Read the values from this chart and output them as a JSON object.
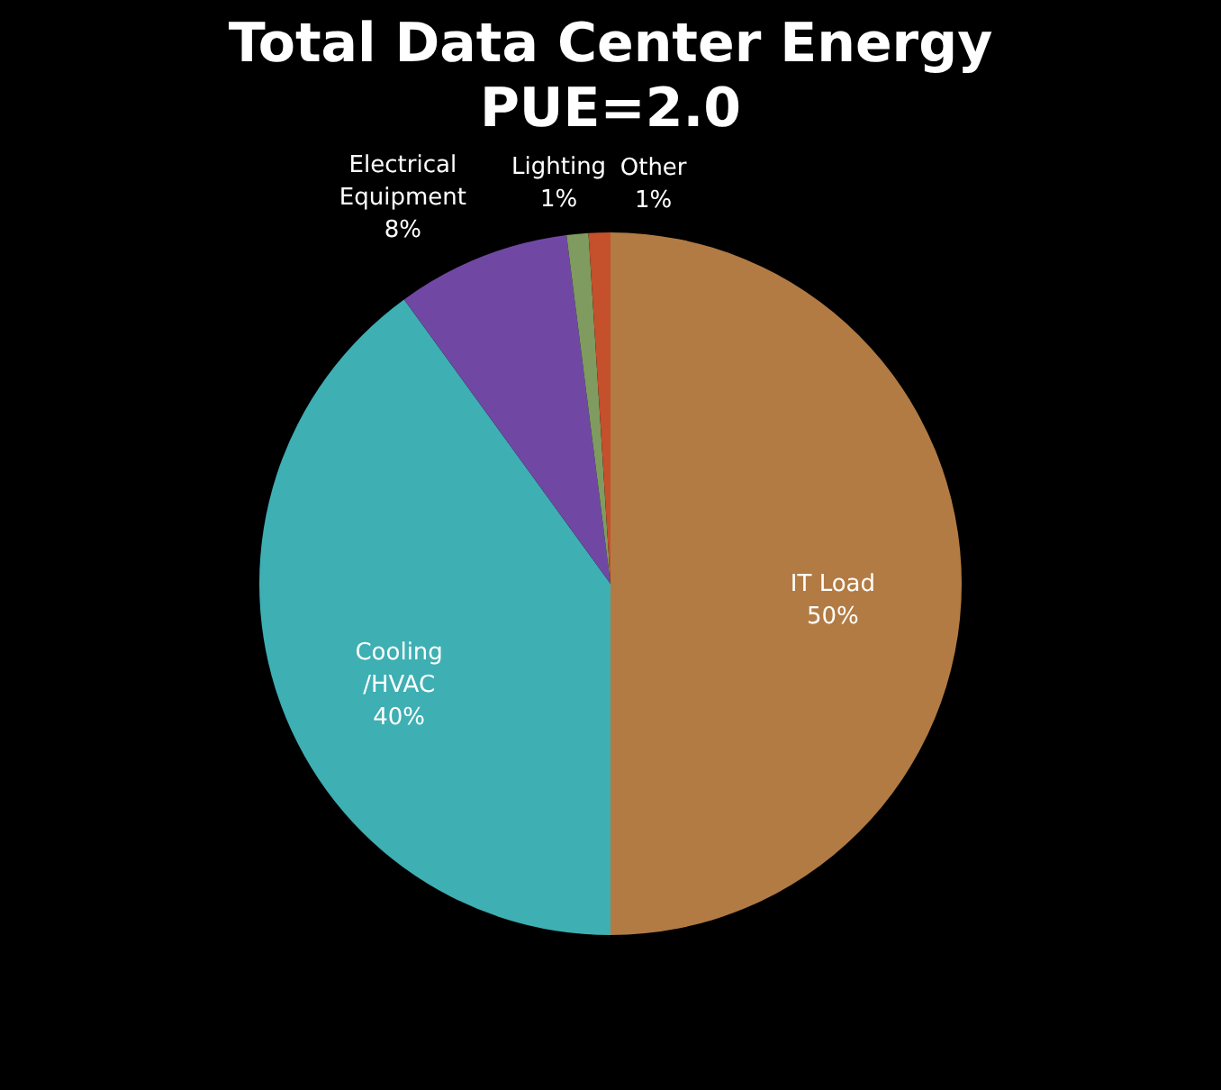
{
  "chart_data": {
    "type": "pie",
    "title": "Total Data Center Energy",
    "subtitle": "PUE=2.0",
    "categories": [
      "IT Load",
      "Cooling /HVAC",
      "Electrical Equipment",
      "Lighting",
      "Other"
    ],
    "values": [
      50,
      40,
      8,
      1,
      1
    ],
    "colors": [
      "#b27b44",
      "#3eafb3",
      "#7048a4",
      "#7f9b60",
      "#c4502c"
    ],
    "value_labels": [
      "50%",
      "40%",
      "8%",
      "1%",
      "1%"
    ],
    "legend": false
  }
}
